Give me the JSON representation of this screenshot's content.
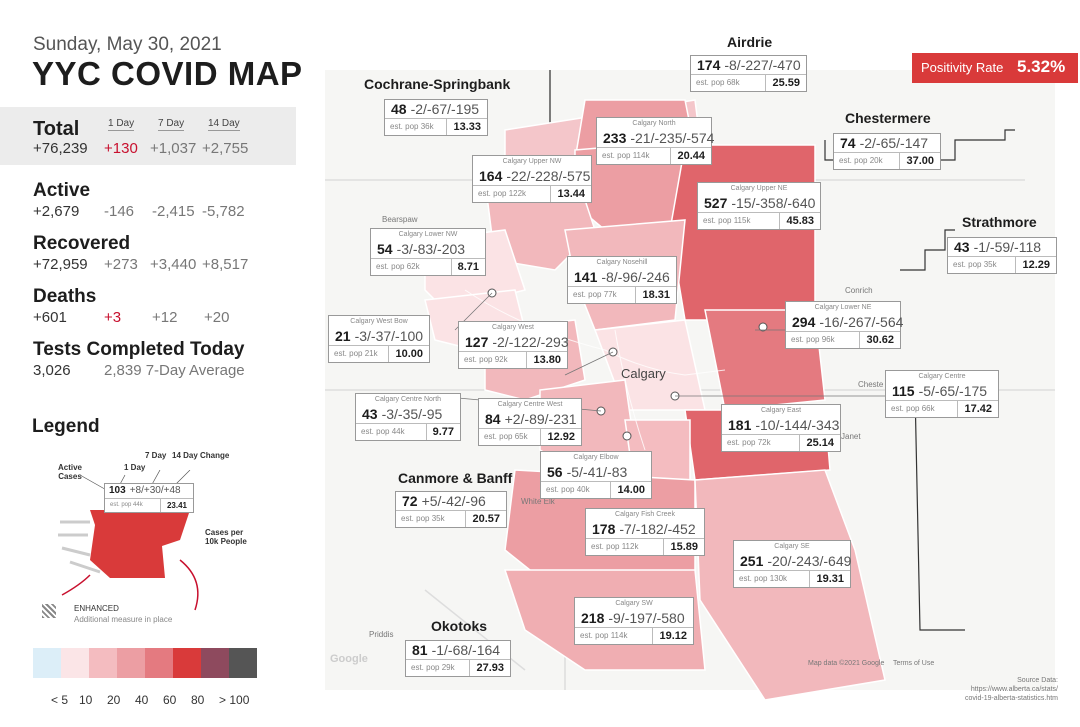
{
  "header": {
    "date": "Sunday, May 30, 2021",
    "title": "YYC COVID MAP"
  },
  "columns": {
    "d1": "1 Day",
    "d7": "7 Day",
    "d14": "14 Day"
  },
  "stats": {
    "total": {
      "label": "Total",
      "value": "+76,239",
      "d1": "+130",
      "d7": "+1,037",
      "d14": "+2,755"
    },
    "active": {
      "label": "Active",
      "value": "+2,679",
      "d1": "-146",
      "d7": "-2,415",
      "d14": "-5,782"
    },
    "recovered": {
      "label": "Recovered",
      "value": "+72,959",
      "d1": "+273",
      "d7": "+3,440",
      "d14": "+8,517"
    },
    "deaths": {
      "label": "Deaths",
      "value": "+601",
      "d1": "+3",
      "d7": "+12",
      "d14": "+20"
    },
    "tests": {
      "label": "Tests Completed Today",
      "value": "3,026",
      "avg": "2,839 7-Day Average"
    }
  },
  "positivity": {
    "label": "Positivity Rate",
    "value": "5.32%"
  },
  "legend": {
    "title": "Legend",
    "active_cases": "Active Cases",
    "one_day": "1 Day",
    "seven_day": "7 Day",
    "fourteen_day": "14 Day Change",
    "example_main": "103",
    "example_changes": "+8/+30/+48",
    "example_pop": "est. pop 44k",
    "example_rate": "23.41",
    "cases_per": "Cases per 10k People",
    "enhanced": "ENHANCED",
    "enhanced_sub": "Additional measure in place",
    "scale_colors": [
      "#dceef8",
      "#fbe5e7",
      "#f4bcc0",
      "#ec9ea3",
      "#e47a80",
      "#d93a3a",
      "#8e4a5e",
      "#555555"
    ],
    "scale_labels": [
      "< 5",
      "10",
      "20",
      "40",
      "60",
      "80",
      "> 100"
    ]
  },
  "map_labels": {
    "calgary": "Calgary",
    "conrich": "Conrich",
    "chestermere_small": "Cheste",
    "janet": "Janet",
    "white_elk": "White Elk",
    "priddis": "Priddis",
    "google": "Google",
    "map_data": "Map data ©2021 Google",
    "terms": "Terms of Use",
    "beiseker": "Bearspaw"
  },
  "cities": {
    "cochrane": "Cochrane-Springbank",
    "airdrie": "Airdrie",
    "chestermere": "Chestermere",
    "strathmore": "Strathmore",
    "canmore": "Canmore & Banff",
    "okotoks": "Okotoks"
  },
  "regions": [
    {
      "key": "airdrie",
      "sub": "",
      "active": "174",
      "changes": "-8/-227/-470",
      "pop": "est. pop 68k",
      "rate": "25.59"
    },
    {
      "key": "cochrane",
      "sub": "",
      "active": "48",
      "changes": "-2/-67/-195",
      "pop": "est. pop 36k",
      "rate": "13.33"
    },
    {
      "key": "north",
      "sub": "Calgary North",
      "active": "233",
      "changes": "-21/-235/-574",
      "pop": "est. pop 114k",
      "rate": "20.44"
    },
    {
      "key": "chestermere",
      "sub": "",
      "active": "74",
      "changes": "-2/-65/-147",
      "pop": "est. pop 20k",
      "rate": "37.00"
    },
    {
      "key": "uppernw",
      "sub": "Calgary Upper NW",
      "active": "164",
      "changes": "-22/-228/-575",
      "pop": "est. pop 122k",
      "rate": "13.44"
    },
    {
      "key": "upperne",
      "sub": "Calgary Upper NE",
      "active": "527",
      "changes": "-15/-358/-640",
      "pop": "est. pop 115k",
      "rate": "45.83"
    },
    {
      "key": "lowernw",
      "sub": "Calgary Lower NW",
      "active": "54",
      "changes": "-3/-83/-203",
      "pop": "est. pop 62k",
      "rate": "8.71"
    },
    {
      "key": "strathmore",
      "sub": "",
      "active": "43",
      "changes": "-1/-59/-118",
      "pop": "est. pop 35k",
      "rate": "12.29"
    },
    {
      "key": "nosehill",
      "sub": "Calgary Nosehill",
      "active": "141",
      "changes": "-8/-96/-246",
      "pop": "est. pop 77k",
      "rate": "18.31"
    },
    {
      "key": "lowerne",
      "sub": "Calgary Lower NE",
      "active": "294",
      "changes": "-16/-267/-564",
      "pop": "est. pop 96k",
      "rate": "30.62"
    },
    {
      "key": "westbow",
      "sub": "Calgary West Bow",
      "active": "21",
      "changes": "-3/-37/-100",
      "pop": "est. pop 21k",
      "rate": "10.00"
    },
    {
      "key": "west",
      "sub": "Calgary West",
      "active": "127",
      "changes": "-2/-122/-293",
      "pop": "est. pop 92k",
      "rate": "13.80"
    },
    {
      "key": "centre",
      "sub": "Calgary Centre",
      "active": "115",
      "changes": "-5/-65/-175",
      "pop": "est. pop 66k",
      "rate": "17.42"
    },
    {
      "key": "centrenorth",
      "sub": "Calgary Centre North",
      "active": "43",
      "changes": "-3/-35/-95",
      "pop": "est. pop 44k",
      "rate": "9.77"
    },
    {
      "key": "centrewest",
      "sub": "Calgary Centre West",
      "active": "84",
      "changes": "+2/-89/-231",
      "pop": "est. pop 65k",
      "rate": "12.92"
    },
    {
      "key": "east",
      "sub": "Calgary East",
      "active": "181",
      "changes": "-10/-144/-343",
      "pop": "est. pop 72k",
      "rate": "25.14"
    },
    {
      "key": "elbow",
      "sub": "Calgary Elbow",
      "active": "56",
      "changes": "-5/-41/-83",
      "pop": "est. pop 40k",
      "rate": "14.00"
    },
    {
      "key": "canmore",
      "sub": "",
      "active": "72",
      "changes": "+5/-42/-96",
      "pop": "est. pop 35k",
      "rate": "20.57"
    },
    {
      "key": "fishcreek",
      "sub": "Calgary Fish Creek",
      "active": "178",
      "changes": "-7/-182/-452",
      "pop": "est. pop 112k",
      "rate": "15.89"
    },
    {
      "key": "se",
      "sub": "Calgary SE",
      "active": "251",
      "changes": "-20/-243/-649",
      "pop": "est. pop 130k",
      "rate": "19.31"
    },
    {
      "key": "sw",
      "sub": "Calgary SW",
      "active": "218",
      "changes": "-9/-197/-580",
      "pop": "est. pop 114k",
      "rate": "19.12"
    },
    {
      "key": "okotoks",
      "sub": "",
      "active": "81",
      "changes": "-1/-68/-164",
      "pop": "est. pop 29k",
      "rate": "27.93"
    }
  ],
  "source": {
    "line1": "Source Data:",
    "line2": "https://www.alberta.ca/stats/",
    "line3": "covid-19-alberta-statistics.htm"
  }
}
